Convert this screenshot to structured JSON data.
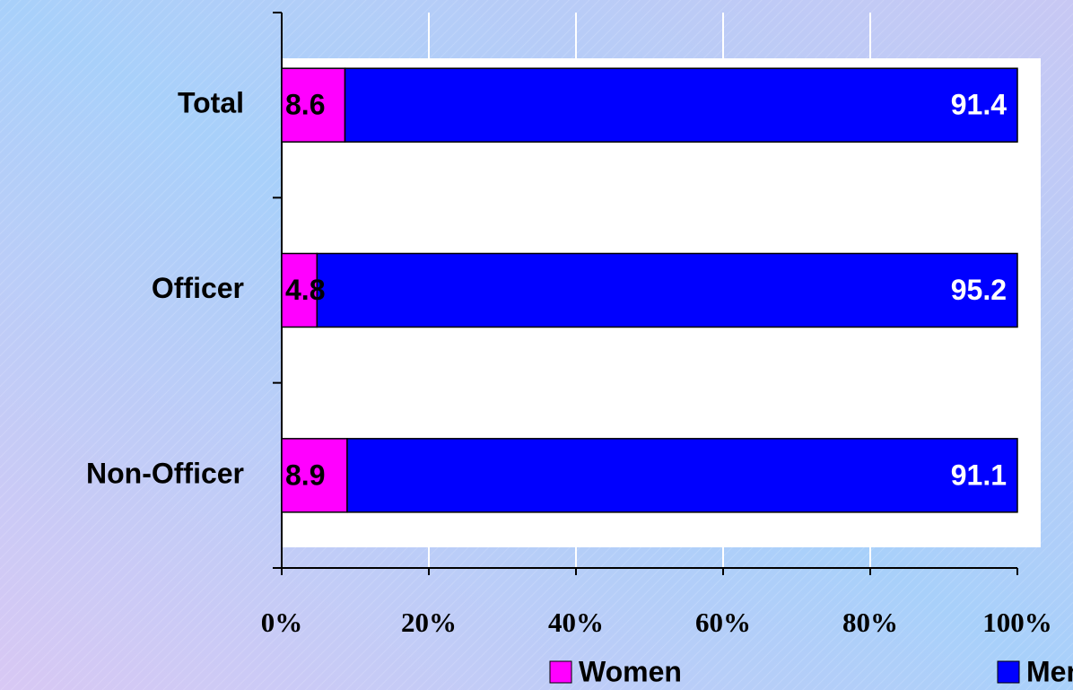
{
  "chart_data": {
    "type": "stacked_barh",
    "categories": [
      "Total",
      "Officer",
      "Non-Officer"
    ],
    "series": [
      {
        "name": "Women",
        "color": "#ff00ff",
        "values": [
          8.6,
          4.8,
          8.9
        ]
      },
      {
        "name": "Men",
        "color": "#0000ff",
        "values": [
          91.4,
          95.2,
          91.1
        ]
      }
    ],
    "xlim": [
      0,
      100
    ],
    "xticks": [
      {
        "value": 0,
        "label": "0%"
      },
      {
        "value": 20,
        "label": "20%"
      },
      {
        "value": 40,
        "label": "40%"
      },
      {
        "value": 60,
        "label": "60%"
      },
      {
        "value": 80,
        "label": "80%"
      },
      {
        "value": 100,
        "label": "100%"
      }
    ],
    "grid": true,
    "legend": "bottom"
  }
}
